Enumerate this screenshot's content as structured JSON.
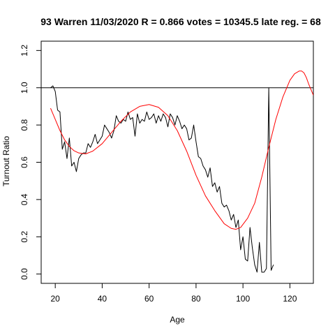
{
  "chart_data": {
    "type": "line",
    "title": "93 Warren 11/03/2020 R = 0.866 votes = 10345.5 late reg. = 68",
    "xlabel": "Age",
    "ylabel": "Turnout Ratio",
    "xlim": [
      14,
      130
    ],
    "ylim": [
      -0.05,
      1.25
    ],
    "xticks": [
      20,
      40,
      60,
      80,
      100,
      120
    ],
    "yticks": [
      0.0,
      0.2,
      0.4,
      0.6,
      0.8,
      1.0,
      1.2
    ],
    "reference_line": {
      "y": 1.0,
      "color": "#000000"
    },
    "grid": false,
    "series": [
      {
        "color": "#000000",
        "x": [
          18,
          19,
          20,
          21,
          22,
          23,
          24,
          25,
          26,
          27,
          28,
          29,
          30,
          31,
          32,
          33,
          34,
          35,
          36,
          37,
          38,
          39,
          40,
          41,
          42,
          43,
          44,
          45,
          46,
          47,
          48,
          49,
          50,
          51,
          52,
          53,
          54,
          55,
          56,
          57,
          58,
          59,
          60,
          61,
          62,
          63,
          64,
          65,
          66,
          67,
          68,
          69,
          70,
          71,
          72,
          73,
          74,
          75,
          76,
          77,
          78,
          79,
          80,
          81,
          82,
          83,
          84,
          85,
          86,
          87,
          88,
          89,
          90,
          91,
          92,
          93,
          94,
          95,
          96,
          97,
          98,
          99,
          100,
          101,
          102,
          103,
          104,
          105,
          106,
          107,
          108,
          109,
          110,
          111,
          112,
          113
        ],
        "y": [
          1.0,
          1.01,
          0.98,
          0.88,
          0.87,
          0.67,
          0.71,
          0.62,
          0.73,
          0.58,
          0.6,
          0.55,
          0.62,
          0.64,
          0.65,
          0.65,
          0.7,
          0.68,
          0.71,
          0.75,
          0.7,
          0.72,
          0.74,
          0.8,
          0.78,
          0.76,
          0.73,
          0.77,
          0.85,
          0.82,
          0.81,
          0.83,
          0.82,
          0.87,
          0.83,
          0.84,
          0.74,
          0.86,
          0.81,
          0.83,
          0.82,
          0.87,
          0.83,
          0.84,
          0.86,
          0.81,
          0.85,
          0.82,
          0.86,
          0.84,
          0.79,
          0.86,
          0.84,
          0.8,
          0.85,
          0.82,
          0.78,
          0.8,
          0.78,
          0.72,
          0.73,
          0.8,
          0.71,
          0.63,
          0.62,
          0.58,
          0.56,
          0.52,
          0.57,
          0.47,
          0.49,
          0.44,
          0.47,
          0.38,
          0.36,
          0.37,
          0.34,
          0.29,
          0.32,
          0.25,
          0.29,
          0.13,
          0.2,
          0.08,
          0.07,
          0.25,
          0.14,
          0.05,
          0.01,
          0.17,
          0.01,
          0.01,
          0.03,
          1.0,
          0.02,
          0.05
        ]
      },
      {
        "color": "#ff0000",
        "x": [
          18,
          20,
          22,
          24,
          26,
          28,
          30,
          33,
          36,
          40,
          44,
          48,
          52,
          56,
          60,
          64,
          68,
          72,
          76,
          80,
          84,
          88,
          92,
          95,
          97,
          99,
          102,
          105,
          108,
          111,
          114,
          117,
          120,
          122,
          124,
          125,
          126,
          127,
          128,
          130
        ],
        "y": [
          0.89,
          0.83,
          0.77,
          0.72,
          0.685,
          0.662,
          0.65,
          0.645,
          0.66,
          0.7,
          0.76,
          0.82,
          0.87,
          0.9,
          0.91,
          0.895,
          0.85,
          0.77,
          0.66,
          0.53,
          0.42,
          0.34,
          0.27,
          0.245,
          0.24,
          0.25,
          0.3,
          0.38,
          0.52,
          0.68,
          0.83,
          0.95,
          1.04,
          1.075,
          1.09,
          1.09,
          1.08,
          1.055,
          1.02,
          0.96
        ]
      }
    ]
  }
}
